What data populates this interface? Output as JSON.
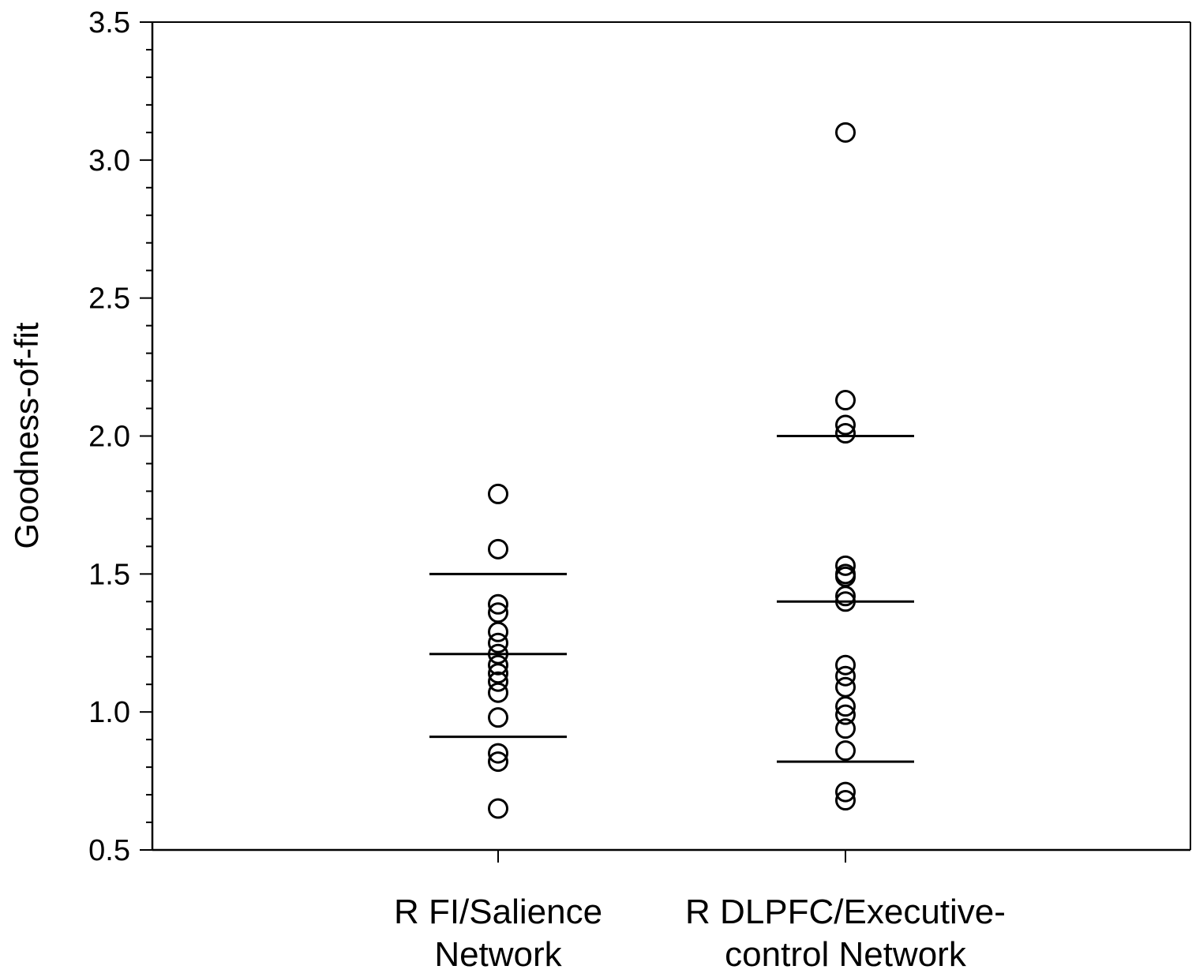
{
  "chart_data": {
    "type": "scatter",
    "ylabel": "Goodness-of-fit",
    "ylim": [
      0.5,
      3.5
    ],
    "y_ticks": [
      "0.5",
      "1.0",
      "1.5",
      "2.0",
      "2.5",
      "3.0",
      "3.5"
    ],
    "categories": [
      [
        "R FI/Salience",
        "Network"
      ],
      [
        "R DLPFC/Executive-",
        "control Network"
      ]
    ],
    "series": [
      {
        "values": [
          1.79,
          1.59,
          1.39,
          1.36,
          1.29,
          1.25,
          1.21,
          1.17,
          1.14,
          1.11,
          1.07,
          0.98,
          0.85,
          0.82,
          0.65
        ],
        "summary_lines": [
          1.5,
          1.21,
          0.91
        ]
      },
      {
        "values": [
          3.1,
          2.13,
          2.04,
          2.01,
          1.53,
          1.5,
          1.49,
          1.42,
          1.4,
          1.17,
          1.13,
          1.09,
          1.02,
          0.99,
          0.94,
          0.86,
          0.71,
          0.68
        ],
        "summary_lines": [
          2.0,
          1.4,
          0.82
        ]
      }
    ],
    "grid": false,
    "legend": "none",
    "marker": "open-circle",
    "colors": {
      "stroke": "#000000",
      "background": "#ffffff"
    }
  }
}
